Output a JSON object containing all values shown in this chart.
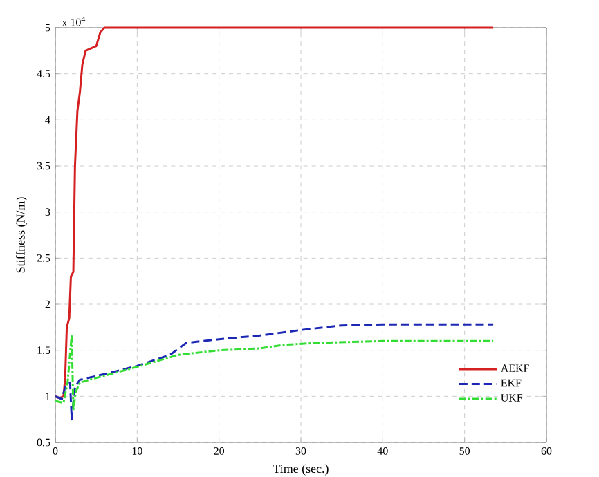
{
  "chart_data": {
    "type": "line",
    "xlabel": "Time (sec.)",
    "ylabel": "Stiffness (N/m)",
    "annotations": [
      "x 10$^{4}$"
    ],
    "xlim": [
      0,
      60
    ],
    "xticks": [
      0,
      10,
      20,
      30,
      40,
      50,
      60
    ],
    "ylim": [
      0.5,
      5
    ],
    "yticks": [
      0.5,
      1,
      1.5,
      2,
      2.5,
      3,
      3.5,
      4,
      4.5,
      5
    ],
    "grid": true,
    "legend": "bottom right",
    "series": [
      {
        "name": "AEKF",
        "color": "#d42020",
        "line_style": "solid",
        "x": [
          0,
          0.5,
          1,
          1.2,
          1.4,
          1.7,
          1.9,
          2.2,
          2.4,
          2.7,
          3,
          3.3,
          3.7,
          5,
          5.5,
          6,
          53.5
        ],
        "values": [
          1.0,
          0.98,
          1.0,
          1.2,
          1.75,
          1.85,
          2.3,
          2.35,
          3.5,
          4.1,
          4.3,
          4.6,
          4.75,
          4.8,
          4.95,
          5.0,
          5.0
        ]
      },
      {
        "name": "EKF",
        "color": "#1c28b4",
        "line_style": "dashed",
        "x": [
          0,
          0.8,
          1.2,
          1.8,
          2,
          2.4,
          3,
          5,
          10,
          14,
          16,
          20,
          25,
          30,
          35,
          40,
          53.5
        ],
        "values": [
          1.0,
          0.97,
          1.1,
          1.15,
          0.75,
          1.1,
          1.18,
          1.22,
          1.33,
          1.45,
          1.58,
          1.62,
          1.66,
          1.72,
          1.77,
          1.78,
          1.78
        ]
      },
      {
        "name": "UKF",
        "color": "#33dd33",
        "line_style": "dashdot",
        "x": [
          0,
          1,
          1.5,
          2,
          2.2,
          2.5,
          3,
          5,
          10,
          15,
          20,
          25,
          28,
          32,
          40,
          53.5
        ],
        "values": [
          0.95,
          0.93,
          1.15,
          1.67,
          0.85,
          1.05,
          1.15,
          1.2,
          1.32,
          1.45,
          1.5,
          1.52,
          1.56,
          1.58,
          1.6,
          1.6
        ]
      }
    ]
  }
}
